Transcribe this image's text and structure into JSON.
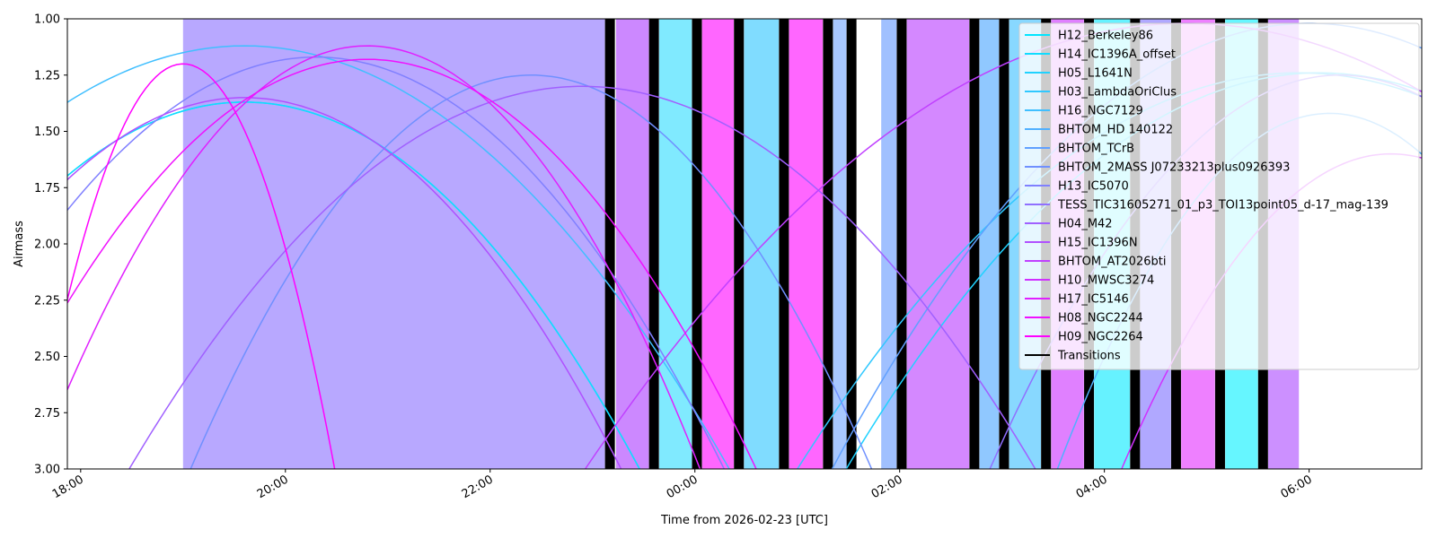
{
  "chart_data": {
    "type": "line",
    "xlabel": "Time from 2026-02-23 [UTC]",
    "ylabel": "Airmass",
    "xlim": [
      17.87,
      31.1
    ],
    "ylim": [
      3.0,
      1.0
    ],
    "y_inverted": true,
    "x_ticks": [
      {
        "value": 18,
        "label": "18:00"
      },
      {
        "value": 20,
        "label": "20:00"
      },
      {
        "value": 22,
        "label": "22:00"
      },
      {
        "value": 24,
        "label": "00:00"
      },
      {
        "value": 26,
        "label": "02:00"
      },
      {
        "value": 28,
        "label": "04:00"
      },
      {
        "value": 30,
        "label": "06:00"
      }
    ],
    "y_ticks": [
      "1.00",
      "1.25",
      "1.50",
      "1.75",
      "2.00",
      "2.25",
      "2.50",
      "2.75",
      "3.00"
    ],
    "legend_placement": "top-right",
    "bands": [
      {
        "start": 19.0,
        "end": 23.12,
        "color": "#b8a8ff"
      },
      {
        "start": 23.23,
        "end": 23.55,
        "color": "#cc88ff"
      },
      {
        "start": 23.65,
        "end": 23.97,
        "color": "#80eaff"
      },
      {
        "start": 24.07,
        "end": 24.38,
        "color": "#ff66ff"
      },
      {
        "start": 24.48,
        "end": 24.82,
        "color": "#80dcff"
      },
      {
        "start": 24.92,
        "end": 25.25,
        "color": "#ff66ff"
      },
      {
        "start": 25.35,
        "end": 25.48,
        "color": "#a8c8ff"
      },
      {
        "start": 25.82,
        "end": 25.97,
        "color": "#a0c0ff"
      },
      {
        "start": 26.07,
        "end": 26.68,
        "color": "#d488ff"
      },
      {
        "start": 26.78,
        "end": 26.97,
        "color": "#90c8ff"
      },
      {
        "start": 27.07,
        "end": 27.38,
        "color": "#88d8ff"
      },
      {
        "start": 27.48,
        "end": 27.8,
        "color": "#e080ff"
      },
      {
        "start": 27.9,
        "end": 28.25,
        "color": "#66f2ff"
      },
      {
        "start": 28.35,
        "end": 28.65,
        "color": "#b0a8ff"
      },
      {
        "start": 28.75,
        "end": 29.08,
        "color": "#ee80ff"
      },
      {
        "start": 29.18,
        "end": 29.5,
        "color": "#66f6ff"
      },
      {
        "start": 29.6,
        "end": 29.9,
        "color": "#cc90ff"
      }
    ],
    "transitions": [
      23.17,
      23.6,
      24.02,
      24.43,
      24.87,
      25.3,
      25.53,
      26.02,
      26.73,
      27.02,
      27.43,
      27.85,
      28.3,
      28.7,
      29.13,
      29.55
    ],
    "series": [
      {
        "name": "H12_Berkeley86",
        "color": "#00e5ff",
        "peak_x": 19.6,
        "peak_y": 1.37,
        "halfwidth": 4.2
      },
      {
        "name": "H14_IC1396A_offset",
        "color": "#10dcff",
        "peak_x": 19.6,
        "peak_y": 1.37,
        "halfwidth": 4.2
      },
      {
        "name": "H05_L1641N",
        "color": "#20d2ff",
        "peak_x": 30.1,
        "peak_y": 1.24,
        "halfwidth": 5.0
      },
      {
        "name": "H03_LambdaOriClus",
        "color": "#30c8ff",
        "peak_x": 29.9,
        "peak_y": 1.24,
        "halfwidth": 5.3
      },
      {
        "name": "H16_NGC7129",
        "color": "#40bfff",
        "peak_x": 19.6,
        "peak_y": 1.12,
        "halfwidth": 5.1
      },
      {
        "name": "BHTOM_HD 140122",
        "color": "#50b0ff",
        "peak_x": 30.2,
        "peak_y": 1.42,
        "halfwidth": 2.9
      },
      {
        "name": "BHTOM_TCrB",
        "color": "#60a0ff",
        "peak_x": 30.0,
        "peak_y": 1.02,
        "halfwidth": 5.0
      },
      {
        "name": "BHTOM_2MASS J07233213plus0926393",
        "color": "#7090ff",
        "peak_x": 22.4,
        "peak_y": 1.25,
        "halfwidth": 3.6
      },
      {
        "name": "H13_IC5070",
        "color": "#8080ff",
        "peak_x": 20.3,
        "peak_y": 1.17,
        "halfwidth": 4.3
      },
      {
        "name": "TESS_TIC31605271_01_p3_TOI13point05_d-17_mag-139",
        "color": "#9070ff",
        "peak_x": 30.3,
        "peak_y": 1.25,
        "halfwidth": 3.7
      },
      {
        "name": "H04_M42",
        "color": "#a060ff",
        "peak_x": 22.9,
        "peak_y": 1.3,
        "halfwidth": 4.8
      },
      {
        "name": "H15_IC1396N",
        "color": "#b050ff",
        "peak_x": 19.6,
        "peak_y": 1.35,
        "halfwidth": 4.0
      },
      {
        "name": "BHTOM_AT2026bti",
        "color": "#c040ff",
        "peak_x": 28.8,
        "peak_y": 1.02,
        "halfwidth": 6.3
      },
      {
        "name": "H10_MWSC3274",
        "color": "#d030ff",
        "peak_x": 30.8,
        "peak_y": 1.6,
        "halfwidth": 2.9
      },
      {
        "name": "H17_IC5146",
        "color": "#e020ff",
        "peak_x": 20.8,
        "peak_y": 1.12,
        "halfwidth": 3.5
      },
      {
        "name": "H08_NGC2244",
        "color": "#f010ff",
        "peak_x": 20.8,
        "peak_y": 1.18,
        "halfwidth": 4.1
      },
      {
        "name": "H09_NGC2264",
        "color": "#ff00ff",
        "peak_x": 19.0,
        "peak_y": 1.2,
        "halfwidth": 1.6
      }
    ],
    "transitions_legend": "Transitions"
  }
}
